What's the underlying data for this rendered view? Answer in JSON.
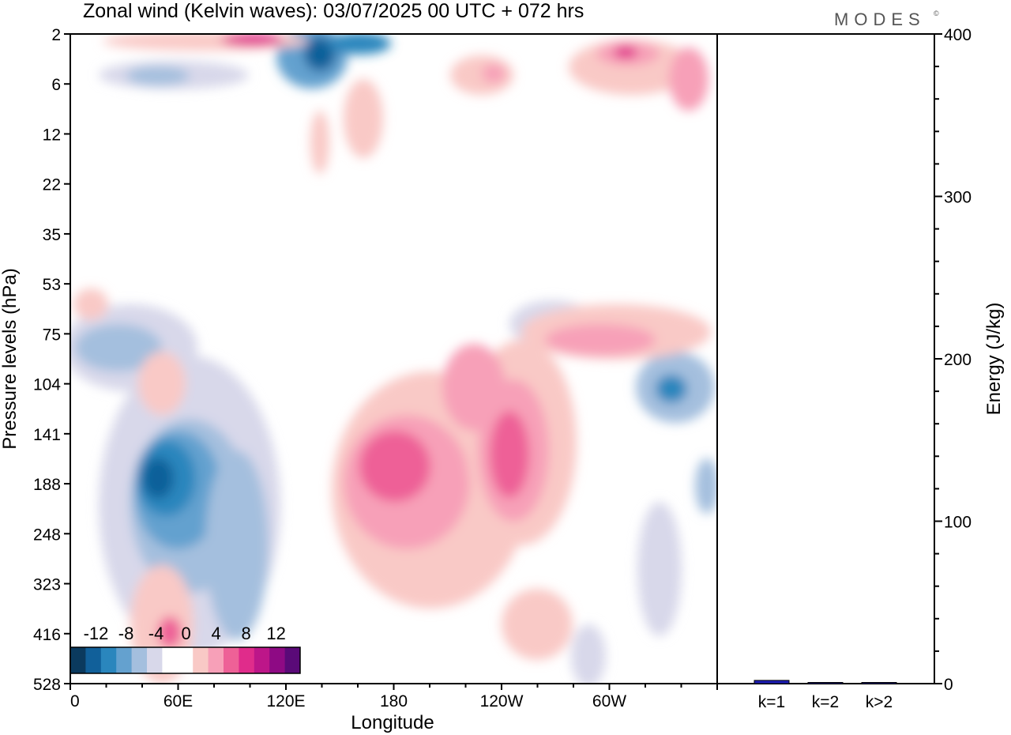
{
  "chart_data": [
    {
      "type": "heatmap",
      "title": "Zonal wind (Kelvin waves):  03/07/2025  00 UTC  + 072 hrs",
      "logo": "MODES",
      "logo_mark": "©",
      "xlabel": "Longitude",
      "ylabel": "Pressure levels (hPa)",
      "x_ticks": [
        "0",
        "60E",
        "120E",
        "180",
        "120W",
        "60W"
      ],
      "y_ticks": [
        "2",
        "6",
        "12",
        "22",
        "35",
        "53",
        "75",
        "104",
        "141",
        "188",
        "248",
        "323",
        "416",
        "528"
      ],
      "xlim": [
        0,
        360
      ],
      "colorbar": {
        "tick_labels": [
          "-12",
          "-8",
          "-4",
          "0",
          "4",
          "8",
          "12"
        ],
        "levels": [
          -14,
          -12,
          -10,
          -8,
          -6,
          -4,
          -2,
          2,
          4,
          6,
          8,
          10,
          12,
          14
        ],
        "colors": [
          "#0b3a5e",
          "#11609a",
          "#2a86bd",
          "#64a1cf",
          "#a4bfde",
          "#d8d8ea",
          "#ffffff",
          "#ffffff",
          "#f9c9c6",
          "#f7a0b8",
          "#ee6197",
          "#e02c8b",
          "#bd1689",
          "#8e0a84",
          "#5a0a78"
        ]
      },
      "features": [
        {
          "sign": "negative",
          "peak": -14,
          "lon": 50,
          "level": 188
        },
        {
          "sign": "negative",
          "peak": -13,
          "lon": 138,
          "level": 4
        },
        {
          "sign": "negative",
          "peak": -10,
          "lon": 330,
          "level": 125
        },
        {
          "sign": "negative",
          "peak": -8,
          "lon": 30,
          "level": 80
        },
        {
          "sign": "positive",
          "peak": 10,
          "lon": 170,
          "level": 188
        },
        {
          "sign": "positive",
          "peak": 9,
          "lon": 245,
          "level": 160
        },
        {
          "sign": "positive",
          "peak": 9,
          "lon": 310,
          "level": 4
        },
        {
          "sign": "positive",
          "peak": 8,
          "lon": 100,
          "level": 2
        }
      ]
    },
    {
      "type": "bar",
      "categories": [
        "k=1",
        "k=2",
        "k>2"
      ],
      "values": [
        2,
        0.5,
        0.5
      ],
      "ylabel": "Energy (J/kg)",
      "y_ticks": [
        "0",
        "100",
        "200",
        "300",
        "400"
      ],
      "ylim": [
        0,
        400
      ],
      "bar_color": "#1c1cb4"
    }
  ]
}
